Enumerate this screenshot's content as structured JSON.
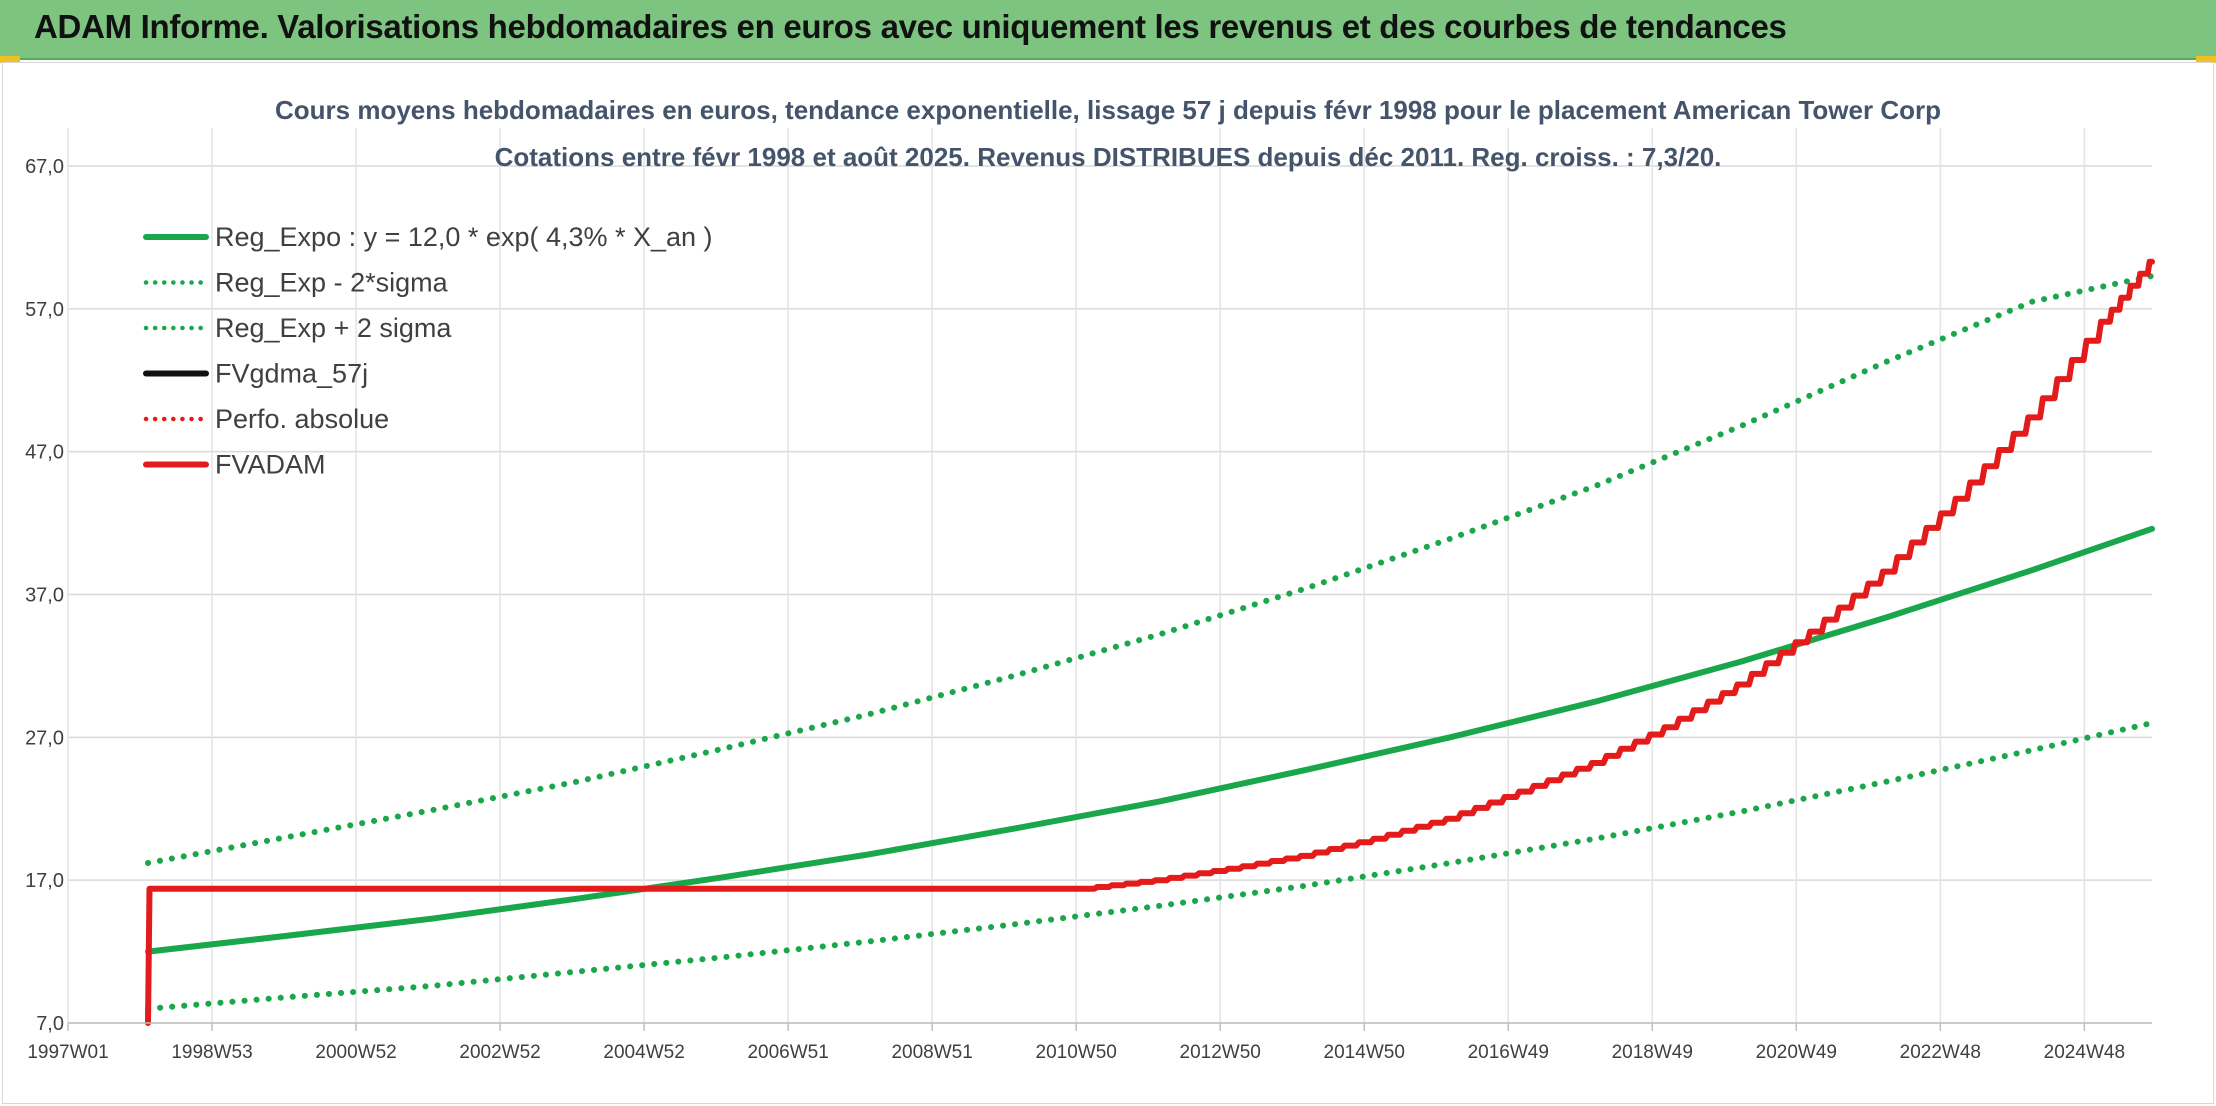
{
  "banner": {
    "title": "ADAM Informe. Valorisations hebdomadaires en euros avec uniquement les revenus et des courbes de tendances"
  },
  "chart_data": {
    "type": "line",
    "title": "Cours moyens hebdomadaires en euros, tendance exponentielle, lissage 57 j depuis févr 1998 pour le placement American Tower Corp",
    "subtitle": "Cotations entre févr 1998 et août 2025. Revenus DISTRIBUES depuis déc 2011. Reg. croiss. : 7,3/20.",
    "xlabel": "",
    "ylabel": "",
    "ylim": [
      7.0,
      67.0
    ],
    "y_ticks": [
      "7,0",
      "17,0",
      "27,0",
      "37,0",
      "47,0",
      "57,0",
      "67,0"
    ],
    "x_tick_labels": [
      "1997W01",
      "1998W53",
      "2000W52",
      "2002W52",
      "2004W52",
      "2006W51",
      "2008W51",
      "2010W50",
      "2012W50",
      "2014W50",
      "2016W49",
      "2018W49",
      "2020W49",
      "2022W48",
      "2024W48"
    ],
    "x_range_years": [
      1997.0,
      2025.65
    ],
    "grid": true,
    "legend_position": "top-left",
    "series": [
      {
        "name": "Reg_Expo : y = 12,0 * exp( 4,3% *  X_an )",
        "color": "#1aa64a",
        "style": "solid",
        "x": [
          1998.1,
          2000.0,
          2002.0,
          2004.0,
          2006.0,
          2008.0,
          2010.0,
          2012.0,
          2014.0,
          2016.0,
          2018.0,
          2020.0,
          2022.0,
          2024.0,
          2025.65
        ],
        "y": [
          12.0,
          13.1,
          14.3,
          15.7,
          17.2,
          18.8,
          20.6,
          22.5,
          24.7,
          27.0,
          29.5,
          32.3,
          35.4,
          38.7,
          41.6
        ]
      },
      {
        "name": "Reg_Exp - 2*sigma",
        "color": "#1aa64a",
        "style": "dotted",
        "x": [
          1998.1,
          2000.0,
          2002.0,
          2004.0,
          2006.0,
          2008.0,
          2010.0,
          2012.0,
          2014.0,
          2016.0,
          2018.0,
          2020.0,
          2022.0,
          2024.0,
          2025.65
        ],
        "y": [
          8.0,
          8.8,
          9.6,
          10.6,
          11.6,
          12.7,
          13.9,
          15.2,
          16.6,
          18.2,
          19.9,
          21.8,
          23.9,
          26.1,
          28.0
        ]
      },
      {
        "name": "Reg_Exp + 2 sigma",
        "color": "#1aa64a",
        "style": "dotted",
        "x": [
          1998.1,
          2000.0,
          2002.0,
          2004.0,
          2006.0,
          2008.0,
          2010.0,
          2012.0,
          2014.0,
          2016.0,
          2018.0,
          2020.0,
          2022.0,
          2024.0,
          2025.65
        ],
        "y": [
          18.2,
          20.0,
          21.9,
          23.9,
          26.2,
          28.6,
          31.3,
          34.2,
          37.4,
          40.9,
          44.6,
          48.8,
          53.3,
          57.5,
          59.3
        ]
      },
      {
        "name": "FVgdma_57j",
        "color": "#111111",
        "style": "solid",
        "x": [
          1998.1,
          1998.12,
          2011.0,
          2012.0,
          2013.0,
          2014.0,
          2015.0,
          2016.0,
          2017.0,
          2018.0,
          2019.0,
          2020.0,
          2021.0,
          2022.0,
          2023.0,
          2024.0,
          2025.0,
          2025.65
        ],
        "y": [
          7.0,
          16.4,
          16.4,
          17.0,
          17.8,
          18.7,
          19.9,
          21.3,
          23.2,
          25.2,
          27.7,
          30.7,
          34.4,
          38.6,
          43.7,
          49.4,
          56.1,
          60.3
        ]
      },
      {
        "name": "Perfo. absolue",
        "color": "#e31b1b",
        "style": "dotted",
        "x": [],
        "y": []
      },
      {
        "name": "FVADAM",
        "color": "#e31b1b",
        "style": "solid",
        "x": [
          1998.1,
          1998.12,
          2011.0,
          2012.0,
          2013.0,
          2014.0,
          2015.0,
          2016.0,
          2017.0,
          2018.0,
          2019.0,
          2020.0,
          2021.0,
          2022.0,
          2023.0,
          2024.0,
          2025.0,
          2025.65
        ],
        "y": [
          7.0,
          16.4,
          16.4,
          17.0,
          17.8,
          18.7,
          19.9,
          21.3,
          23.2,
          25.2,
          27.7,
          30.7,
          34.4,
          38.6,
          43.7,
          49.4,
          56.1,
          60.3
        ]
      }
    ]
  }
}
